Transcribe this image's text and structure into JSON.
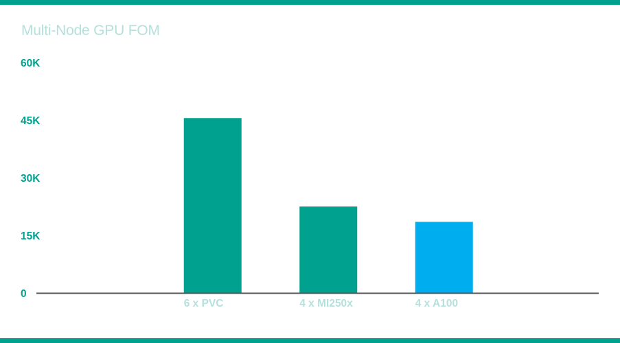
{
  "theme": {
    "stripe_color": "#00a18e",
    "title_color": "#b5e0dc",
    "tick_color_y": "#00a18e",
    "tick_color_x": "#b5e0dc",
    "axis_color": "#555555"
  },
  "chart_data": {
    "type": "bar",
    "title": "Multi-Node GPU FOM",
    "xlabel": "",
    "ylabel": "",
    "categories": [
      "",
      "6 x PVC",
      "4 x MI250x",
      "4 x A100"
    ],
    "values": [
      null,
      45500,
      22500,
      18500
    ],
    "bar_colors": [
      null,
      "#00a18e",
      "#00a18e",
      "#00aeef"
    ],
    "ylim": [
      0,
      60000
    ],
    "yticks": [
      {
        "value": 0,
        "label": "0"
      },
      {
        "value": 15000,
        "label": "15K"
      },
      {
        "value": 30000,
        "label": "30K"
      },
      {
        "value": 45000,
        "label": "45K"
      },
      {
        "value": 60000,
        "label": "60K"
      }
    ],
    "grid": false,
    "legend": "none"
  }
}
